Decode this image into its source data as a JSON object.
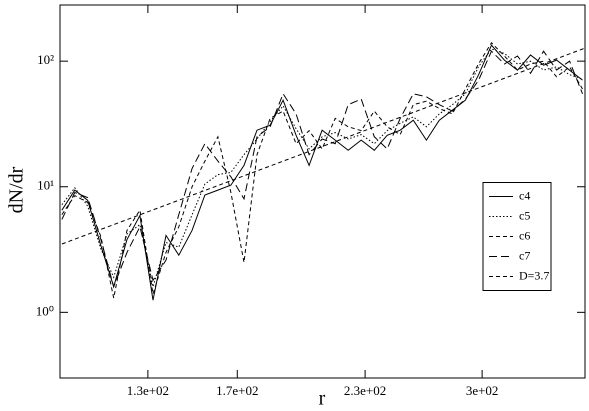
{
  "chart_data": {
    "type": "line",
    "x_label": "r",
    "y_label": "dN/dr",
    "x": [
      106.5,
      110.0,
      113.6,
      117.4,
      121.2,
      125.3,
      129.4,
      133.7,
      138.1,
      142.6,
      147.4,
      152.2,
      157.2,
      162.4,
      167.8,
      173.3,
      179.1,
      185.0,
      191.1,
      197.4,
      203.9,
      210.7,
      217.6,
      224.8,
      232.3,
      239.9,
      247.8,
      256.0,
      264.5,
      273.2,
      282.3,
      291.6,
      301.2,
      311.2,
      321.4,
      332.1,
      343.0,
      354.4,
      366.1,
      378.2,
      390.6
    ],
    "series": [
      {
        "name": "c4",
        "color": "#000000",
        "style": "solid",
        "values": [
          6.5,
          9.4,
          7.8,
          3.4,
          1.6,
          3.8,
          5.9,
          1.25,
          4.1,
          2.85,
          4.5,
          8.6,
          9.4,
          10.3,
          14.8,
          28.2,
          30.9,
          48.9,
          25.7,
          14.8,
          28.2,
          23.5,
          19.5,
          23.5,
          19.5,
          25.7,
          28.2,
          33.9,
          23.5,
          33.9,
          40.7,
          48.9,
          77.3,
          134,
          102,
          84.8,
          112,
          92.9,
          102,
          84.8,
          70.6
        ]
      },
      {
        "name": "c5",
        "color": "#000000",
        "style": "dotted",
        "values": [
          7.2,
          9.8,
          7.0,
          3.2,
          1.9,
          4.2,
          5.0,
          1.6,
          3.6,
          3.3,
          6.0,
          10.5,
          12.5,
          13.0,
          18.0,
          24.0,
          33.0,
          44.0,
          29.0,
          20.0,
          25.0,
          27.0,
          24.0,
          26.0,
          22.0,
          28.0,
          32.0,
          36.0,
          30.0,
          38.0,
          45.0,
          55.0,
          90.0,
          125,
          115,
          95,
          100,
          85,
          90,
          78,
          72
        ]
      },
      {
        "name": "c6",
        "color": "#000000",
        "style": "dashed",
        "values": [
          6.0,
          8.5,
          7.5,
          4.0,
          1.3,
          4.5,
          6.5,
          1.4,
          3.0,
          4.8,
          10.0,
          16.0,
          25.0,
          9.0,
          2.5,
          18.0,
          35.0,
          40.0,
          22.0,
          28.0,
          20.0,
          35.0,
          30.0,
          28.0,
          40.0,
          30.0,
          26.0,
          45.0,
          48.0,
          42.0,
          38.0,
          60.0,
          95.0,
          140,
          110,
          85,
          95,
          100,
          75,
          90,
          60
        ]
      },
      {
        "name": "c7",
        "color": "#000000",
        "style": "long-dashed",
        "values": [
          5.5,
          9.0,
          8.2,
          3.8,
          1.6,
          3.0,
          4.8,
          1.8,
          2.6,
          6.0,
          14.0,
          22.0,
          16.0,
          12.0,
          8.0,
          25.0,
          30.0,
          55.0,
          38.0,
          18.0,
          24.0,
          22.0,
          45.0,
          50.0,
          25.0,
          20.0,
          35.0,
          55.0,
          52.0,
          45.0,
          40.0,
          50.0,
          70.0,
          120,
          95,
          110,
          80,
          120,
          85,
          100,
          55
        ]
      },
      {
        "name": "D=3.7",
        "color": "#000000",
        "style": "dashed",
        "x": [
          106.5,
          393
        ],
        "values": [
          3.5,
          127
        ]
      }
    ],
    "xscale": "log",
    "yscale": "log",
    "xlim": [
      106,
      393
    ],
    "ylim": [
      0.3,
      280
    ],
    "xticks": [
      {
        "value": 132,
        "label": "1.3e+02"
      },
      {
        "value": 165,
        "label": "1.7e+02"
      },
      {
        "value": 227,
        "label": "2.3e+02"
      },
      {
        "value": 304,
        "label": "3e+02"
      }
    ],
    "yticks": [
      {
        "value": 1,
        "label": "10⁰"
      },
      {
        "value": 10,
        "label": "10¹"
      },
      {
        "value": 100,
        "label": "10²"
      }
    ],
    "legend": "right"
  }
}
